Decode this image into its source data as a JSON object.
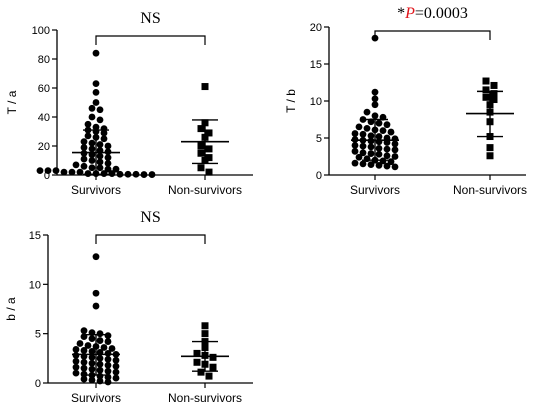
{
  "chart_data": [
    {
      "type": "scatter",
      "ylabel": "T / a",
      "ylim": [
        0,
        100
      ],
      "yticks": [
        0,
        20,
        40,
        60,
        80,
        100
      ],
      "categories": [
        "Survivors",
        "Non-survivors"
      ],
      "annotation": {
        "text": "NS"
      },
      "series": [
        {
          "marker": "circle",
          "mean": 15.5,
          "sd_low": 0.5,
          "sd_high": 31,
          "values": [
            84,
            63,
            57,
            50,
            46,
            45,
            40,
            38,
            35,
            33,
            32,
            31,
            30,
            29,
            27,
            26,
            25,
            23,
            22,
            21,
            20,
            19,
            18,
            17,
            16,
            15,
            14,
            13,
            12,
            11,
            10,
            9,
            8,
            7,
            6,
            5,
            5,
            4,
            4,
            3,
            3,
            3,
            2,
            2,
            2,
            1,
            1,
            1,
            1,
            0.5,
            0.5,
            0.5,
            0.3,
            0.3
          ]
        },
        {
          "marker": "square",
          "mean": 23,
          "sd_low": 8,
          "sd_high": 38,
          "values": [
            61,
            36,
            32,
            29,
            26,
            20,
            18,
            15,
            12,
            10,
            5,
            2
          ]
        }
      ]
    },
    {
      "type": "scatter",
      "ylabel": "T / b",
      "ylim": [
        0,
        20
      ],
      "yticks": [
        0,
        5,
        10,
        15,
        20
      ],
      "categories": [
        "Survivors",
        "Non-survivors"
      ],
      "annotation": {
        "star": "*",
        "p": "P",
        "rest": "=0.0003"
      },
      "series": [
        {
          "marker": "circle",
          "mean": 4.7,
          "sd_low": 2,
          "sd_high": 7.5,
          "values": [
            18.5,
            11.2,
            10.3,
            9.5,
            8.5,
            8,
            7.8,
            7.5,
            7.2,
            7,
            6.8,
            6.5,
            6.3,
            6.1,
            6,
            5.8,
            5.6,
            5.5,
            5.3,
            5.2,
            5,
            4.9,
            4.8,
            4.7,
            4.6,
            4.5,
            4.4,
            4.2,
            4,
            3.9,
            3.8,
            3.6,
            3.5,
            3.4,
            3.2,
            3,
            2.9,
            2.8,
            2.6,
            2.5,
            2.4,
            2.2,
            2,
            1.9,
            1.8,
            1.6,
            1.5,
            1.4,
            1.3,
            1.2,
            1.1
          ]
        },
        {
          "marker": "square",
          "mean": 8.3,
          "sd_low": 5.2,
          "sd_high": 11.3,
          "values": [
            12.7,
            12.1,
            11.5,
            11,
            10.5,
            10.2,
            9.5,
            8.5,
            7.2,
            5.2,
            3.7,
            2.6
          ]
        }
      ]
    },
    {
      "type": "scatter",
      "ylabel": "b / a",
      "ylim": [
        0,
        15
      ],
      "yticks": [
        0,
        5,
        10,
        15
      ],
      "categories": [
        "Survivors",
        "Non-survivors"
      ],
      "annotation": {
        "text": "NS"
      },
      "series": [
        {
          "marker": "circle",
          "mean": 2.9,
          "sd_low": 0.8,
          "sd_high": 4.9,
          "values": [
            12.8,
            9.1,
            7.8,
            5.3,
            5.1,
            5,
            4.8,
            4.7,
            4.5,
            4.3,
            4.2,
            4,
            3.8,
            3.7,
            3.6,
            3.5,
            3.4,
            3.3,
            3.2,
            3.1,
            3,
            2.9,
            2.8,
            2.7,
            2.6,
            2.5,
            2.4,
            2.3,
            2.2,
            2.1,
            2,
            1.9,
            1.8,
            1.7,
            1.6,
            1.5,
            1.4,
            1.3,
            1.2,
            1.1,
            1,
            0.9,
            0.8,
            0.7,
            0.6,
            0.5,
            0.4,
            0.3,
            0.2,
            0.1
          ]
        },
        {
          "marker": "square",
          "mean": 2.7,
          "sd_low": 1.2,
          "sd_high": 4.2,
          "values": [
            5.8,
            5,
            4.2,
            3.6,
            3,
            2.8,
            2.6,
            2.1,
            1.9,
            1.6,
            1.1,
            0.7
          ]
        }
      ]
    }
  ]
}
